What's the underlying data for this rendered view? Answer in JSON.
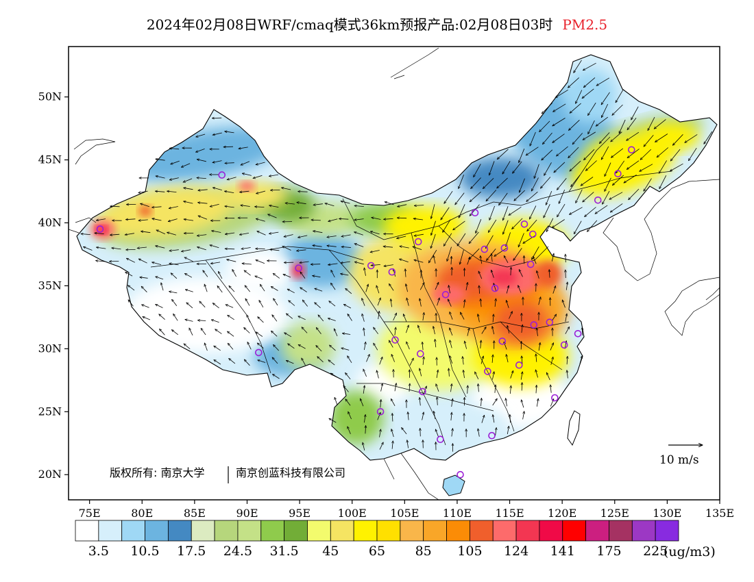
{
  "title": {
    "prefix": "2024年02月08日WRF/cmaq模式36km预报产品:02月08日03时",
    "species": "PM2.5",
    "species_color": "#e8202a"
  },
  "map": {
    "lon_range": [
      73,
      135
    ],
    "lat_range": [
      18,
      54
    ],
    "lon_ticks": [
      "75E",
      "80E",
      "85E",
      "90E",
      "95E",
      "100E",
      "105E",
      "110E",
      "115E",
      "120E",
      "125E",
      "130E",
      "135E"
    ],
    "lon_tick_values": [
      75,
      80,
      85,
      90,
      95,
      100,
      105,
      110,
      115,
      120,
      125,
      130,
      135
    ],
    "lat_ticks": [
      "20N",
      "25N",
      "30N",
      "35N",
      "40N",
      "45N",
      "50N"
    ],
    "lat_tick_values": [
      20,
      25,
      30,
      35,
      40,
      45,
      50
    ],
    "copyright_left": "版权所有: 南京大学",
    "copyright_right": "南京创蓝科技有限公司",
    "wind_reference_label": "10 m/s",
    "stations": [
      [
        76.0,
        39.5
      ],
      [
        87.6,
        43.8
      ],
      [
        91.1,
        29.7
      ],
      [
        94.9,
        36.4
      ],
      [
        101.8,
        36.6
      ],
      [
        103.8,
        36.1
      ],
      [
        106.3,
        38.5
      ],
      [
        111.7,
        40.8
      ],
      [
        114.5,
        38.0
      ],
      [
        112.6,
        37.9
      ],
      [
        116.4,
        39.9
      ],
      [
        117.2,
        39.1
      ],
      [
        117.0,
        36.7
      ],
      [
        113.6,
        34.8
      ],
      [
        108.9,
        34.3
      ],
      [
        104.1,
        30.7
      ],
      [
        106.5,
        29.6
      ],
      [
        106.7,
        26.6
      ],
      [
        102.7,
        25.0
      ],
      [
        108.4,
        22.8
      ],
      [
        113.3,
        23.1
      ],
      [
        110.3,
        20.0
      ],
      [
        112.9,
        28.2
      ],
      [
        114.3,
        30.6
      ],
      [
        115.9,
        28.7
      ],
      [
        117.3,
        31.9
      ],
      [
        118.8,
        32.1
      ],
      [
        120.2,
        30.3
      ],
      [
        121.5,
        31.2
      ],
      [
        119.3,
        26.1
      ],
      [
        123.4,
        41.8
      ],
      [
        125.3,
        43.9
      ],
      [
        126.6,
        45.8
      ]
    ]
  },
  "legend": {
    "labels": [
      "3.5",
      "10.5",
      "17.5",
      "24.5",
      "31.5",
      "45",
      "65",
      "85",
      "105",
      "124",
      "141",
      "175",
      "225"
    ],
    "unit": "(ug/m3)",
    "colors": [
      "#ffffff",
      "#d6effb",
      "#9fd8f5",
      "#6cb4e0",
      "#4489c2",
      "#dcebc1",
      "#b6d67c",
      "#c4e187",
      "#8fcb4c",
      "#72ad37",
      "#f3fb6d",
      "#f5e462",
      "#fff200",
      "#ffe000",
      "#f9b64a",
      "#f9a628",
      "#fb8c06",
      "#f05f2c",
      "#fd6b6b",
      "#f33652",
      "#f00a47",
      "#ff0000",
      "#cc1f80",
      "#a53262",
      "#9c38c4",
      "#882be0"
    ]
  }
}
